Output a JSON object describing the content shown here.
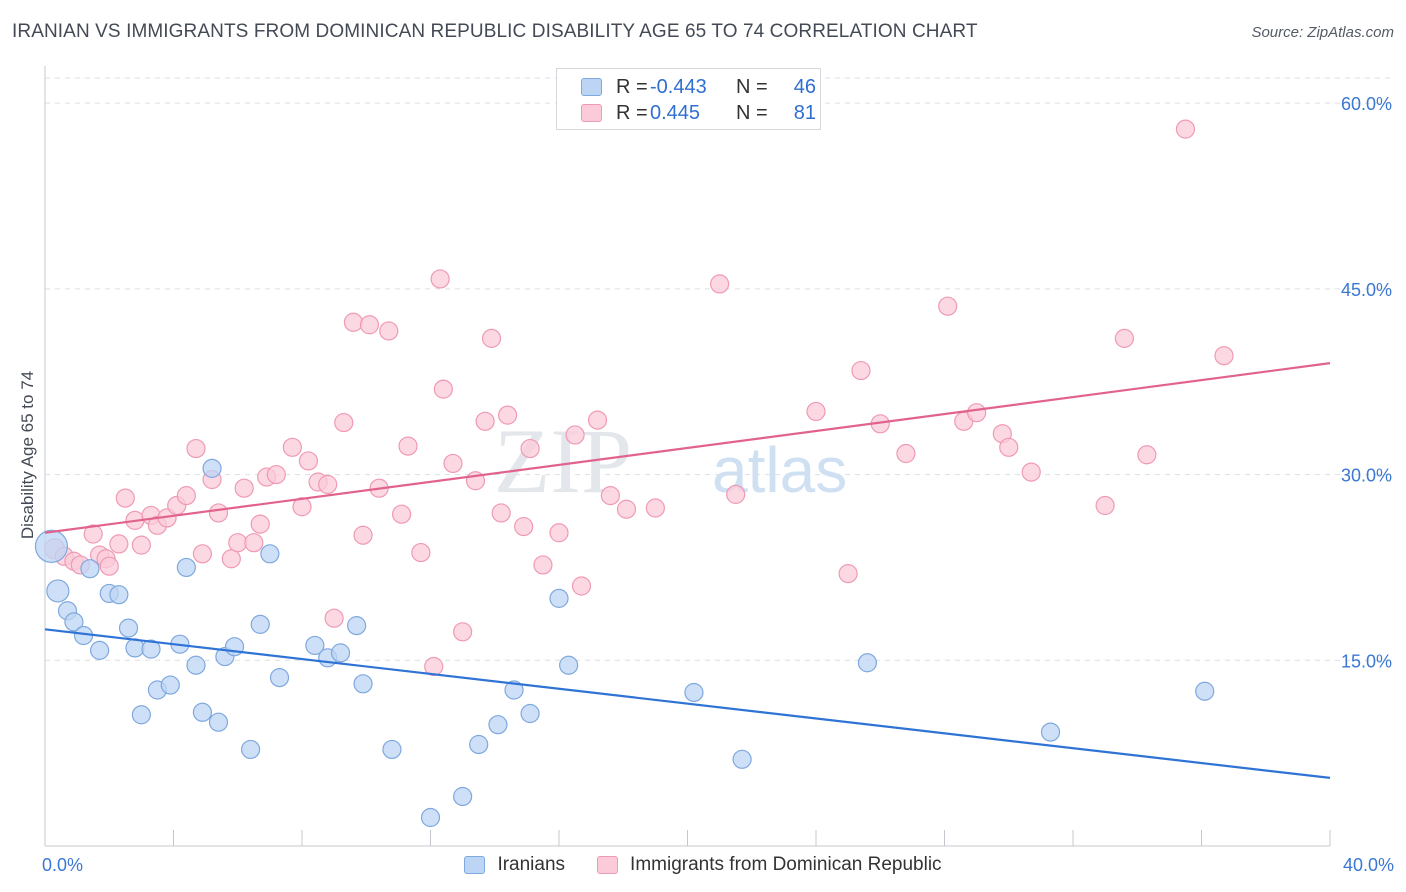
{
  "title": "IRANIAN VS IMMIGRANTS FROM DOMINICAN REPUBLIC DISABILITY AGE 65 TO 74 CORRELATION CHART",
  "source": "Source: ZipAtlas.com",
  "watermark": {
    "zip": "ZIP",
    "atlas": "atlas"
  },
  "legend": {
    "rows": [
      {
        "r_label": "R =",
        "r_value": "-0.443",
        "n_label": "N =",
        "n_value": "46"
      },
      {
        "r_label": "R =",
        "r_value": "0.445",
        "n_label": "N =",
        "n_value": "81"
      }
    ]
  },
  "bottom_legend": {
    "series1": "Iranians",
    "series2": "Immigrants from Dominican Republic"
  },
  "colors": {
    "blue_fill": "#bdd5f4",
    "blue_stroke": "#7fa8de",
    "blue_line": "#2f73d6",
    "pink_fill": "#fbcbd9",
    "pink_stroke": "#ef9ab3",
    "pink_line": "#e2628e",
    "tick_text": "#3a78d4",
    "grid": "#dcdfe4"
  },
  "chart_data": {
    "type": "scatter",
    "title": "IRANIAN VS IMMIGRANTS FROM DOMINICAN REPUBLIC DISABILITY AGE 65 TO 74 CORRELATION CHART",
    "xlabel": "",
    "ylabel": "Disability Age 65 to 74",
    "xlim": [
      0,
      40
    ],
    "ylim": [
      0,
      63
    ],
    "x_tick_labels": [
      "0.0%",
      "40.0%"
    ],
    "y_ticks": [
      15,
      30,
      45,
      60
    ],
    "y_tick_labels": [
      "15.0%",
      "30.0%",
      "45.0%",
      "60.0%"
    ],
    "x_ticks_minor": [
      0,
      4,
      8,
      12,
      16,
      20,
      24,
      28,
      32,
      36,
      40
    ],
    "series": [
      {
        "name": "Iranians",
        "r": -0.443,
        "n": 46,
        "trend": {
          "x": [
            0,
            40
          ],
          "y": [
            17.5,
            5.5
          ]
        },
        "points": [
          [
            0.2,
            24.2,
            16
          ],
          [
            0.4,
            20.6,
            11
          ],
          [
            0.7,
            19.0,
            9
          ],
          [
            0.9,
            18.1,
            9
          ],
          [
            1.2,
            17.0,
            9
          ],
          [
            1.4,
            22.4,
            9
          ],
          [
            1.7,
            15.8,
            9
          ],
          [
            2.0,
            20.4,
            9
          ],
          [
            2.3,
            20.3,
            9
          ],
          [
            2.6,
            17.6,
            9
          ],
          [
            2.8,
            16.0,
            9
          ],
          [
            3.0,
            10.6,
            9
          ],
          [
            3.3,
            15.9,
            9
          ],
          [
            3.5,
            12.6,
            9
          ],
          [
            3.9,
            13.0,
            9
          ],
          [
            4.2,
            16.3,
            9
          ],
          [
            4.4,
            22.5,
            9
          ],
          [
            4.7,
            14.6,
            9
          ],
          [
            4.9,
            10.8,
            9
          ],
          [
            5.2,
            30.5,
            9
          ],
          [
            5.4,
            10.0,
            9
          ],
          [
            5.6,
            15.3,
            9
          ],
          [
            5.9,
            16.1,
            9
          ],
          [
            6.4,
            7.8,
            9
          ],
          [
            6.7,
            17.9,
            9
          ],
          [
            7.0,
            23.6,
            9
          ],
          [
            7.3,
            13.6,
            9
          ],
          [
            8.4,
            16.2,
            9
          ],
          [
            8.8,
            15.2,
            9
          ],
          [
            9.2,
            15.6,
            9
          ],
          [
            9.7,
            17.8,
            9
          ],
          [
            9.9,
            13.1,
            9
          ],
          [
            10.8,
            7.8,
            9
          ],
          [
            12.0,
            2.3,
            9
          ],
          [
            13.0,
            4.0,
            9
          ],
          [
            13.5,
            8.2,
            9
          ],
          [
            14.1,
            9.8,
            9
          ],
          [
            14.6,
            12.6,
            9
          ],
          [
            15.1,
            10.7,
            9
          ],
          [
            16.0,
            20.0,
            9
          ],
          [
            16.3,
            14.6,
            9
          ],
          [
            20.2,
            12.4,
            9
          ],
          [
            21.7,
            7.0,
            9
          ],
          [
            25.6,
            14.8,
            9
          ],
          [
            31.3,
            9.2,
            9
          ],
          [
            36.1,
            12.5,
            9
          ]
        ]
      },
      {
        "name": "Immigrants from Dominican Republic",
        "r": 0.445,
        "n": 81,
        "trend": {
          "x": [
            0,
            40
          ],
          "y": [
            25.3,
            39.0
          ]
        },
        "points": [
          [
            0.3,
            24.0,
            10
          ],
          [
            0.6,
            23.4,
            9
          ],
          [
            0.9,
            23.0,
            9
          ],
          [
            1.1,
            22.7,
            9
          ],
          [
            1.5,
            25.2,
            9
          ],
          [
            1.7,
            23.5,
            9
          ],
          [
            1.9,
            23.2,
            9
          ],
          [
            2.0,
            22.6,
            9
          ],
          [
            2.3,
            24.4,
            9
          ],
          [
            2.5,
            28.1,
            9
          ],
          [
            2.8,
            26.3,
            9
          ],
          [
            3.0,
            24.3,
            9
          ],
          [
            3.3,
            26.7,
            9
          ],
          [
            3.5,
            25.9,
            9
          ],
          [
            3.8,
            26.5,
            9
          ],
          [
            4.1,
            27.5,
            9
          ],
          [
            4.4,
            28.3,
            9
          ],
          [
            4.7,
            32.1,
            9
          ],
          [
            4.9,
            23.6,
            9
          ],
          [
            5.2,
            29.6,
            9
          ],
          [
            5.4,
            26.9,
            9
          ],
          [
            5.8,
            23.2,
            9
          ],
          [
            6.0,
            24.5,
            9
          ],
          [
            6.2,
            28.9,
            9
          ],
          [
            6.5,
            24.5,
            9
          ],
          [
            6.7,
            26.0,
            9
          ],
          [
            6.9,
            29.8,
            9
          ],
          [
            7.2,
            30.0,
            9
          ],
          [
            7.7,
            32.2,
            9
          ],
          [
            8.0,
            27.4,
            9
          ],
          [
            8.2,
            31.1,
            9
          ],
          [
            8.5,
            29.4,
            9
          ],
          [
            8.8,
            29.2,
            9
          ],
          [
            9.0,
            18.4,
            9
          ],
          [
            9.3,
            34.2,
            9
          ],
          [
            9.6,
            42.3,
            9
          ],
          [
            9.9,
            25.1,
            9
          ],
          [
            10.1,
            42.1,
            9
          ],
          [
            10.4,
            28.9,
            9
          ],
          [
            10.7,
            41.6,
            9
          ],
          [
            11.1,
            26.8,
            9
          ],
          [
            11.3,
            32.3,
            9
          ],
          [
            11.7,
            23.7,
            9
          ],
          [
            12.1,
            14.5,
            9
          ],
          [
            12.3,
            45.8,
            9
          ],
          [
            12.4,
            36.9,
            9
          ],
          [
            12.7,
            30.9,
            9
          ],
          [
            13.0,
            17.3,
            9
          ],
          [
            13.4,
            29.5,
            9
          ],
          [
            13.7,
            34.3,
            9
          ],
          [
            13.9,
            41.0,
            9
          ],
          [
            14.2,
            26.9,
            9
          ],
          [
            14.4,
            34.8,
            9
          ],
          [
            14.9,
            25.8,
            9
          ],
          [
            15.1,
            32.1,
            9
          ],
          [
            15.5,
            22.7,
            9
          ],
          [
            16.0,
            25.3,
            9
          ],
          [
            16.5,
            33.2,
            9
          ],
          [
            16.7,
            21.0,
            9
          ],
          [
            17.2,
            34.4,
            9
          ],
          [
            17.6,
            28.3,
            9
          ],
          [
            18.1,
            27.2,
            9
          ],
          [
            19.0,
            27.3,
            9
          ],
          [
            21.0,
            45.4,
            9
          ],
          [
            21.5,
            28.4,
            9
          ],
          [
            24.0,
            35.1,
            9
          ],
          [
            25.0,
            22.0,
            9
          ],
          [
            25.4,
            38.4,
            9
          ],
          [
            26.0,
            34.1,
            9
          ],
          [
            26.8,
            31.7,
            9
          ],
          [
            28.1,
            43.6,
            9
          ],
          [
            28.6,
            34.3,
            9
          ],
          [
            29.0,
            35.0,
            9
          ],
          [
            29.8,
            33.3,
            9
          ],
          [
            30.0,
            32.2,
            9
          ],
          [
            30.7,
            30.2,
            9
          ],
          [
            33.0,
            27.5,
            9
          ],
          [
            33.6,
            41.0,
            9
          ],
          [
            34.3,
            31.6,
            9
          ],
          [
            35.5,
            57.9,
            9
          ],
          [
            36.7,
            39.6,
            9
          ]
        ]
      }
    ]
  }
}
